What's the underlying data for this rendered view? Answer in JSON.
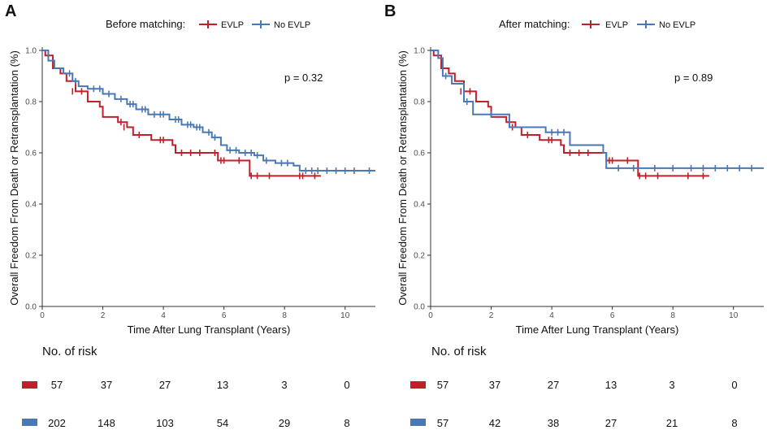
{
  "colors": {
    "evlp": "#c0202a",
    "no_evlp": "#4a78b5",
    "axis": "#333333",
    "tick_text": "#4d4d4d"
  },
  "chart_data": [
    {
      "type": "line",
      "subtype": "kaplan-meier",
      "panel_letter": "A",
      "legend_title": "Before matching:",
      "legend_placement": "top",
      "xlabel": "Time After Lung Transplant (Years)",
      "ylabel": "Overall Freedom From Death or Retransplantation (%)",
      "xlim": [
        0,
        11
      ],
      "ylim": [
        0,
        1
      ],
      "xticks": [
        0,
        2,
        4,
        6,
        8,
        10
      ],
      "yticks": [
        0.0,
        0.2,
        0.4,
        0.6,
        0.8,
        1.0
      ],
      "xtick_labels": [
        "0",
        "2",
        "4",
        "6",
        "8",
        "10"
      ],
      "ytick_labels": [
        "0.0",
        "0.2",
        "0.4",
        "0.6",
        "0.8",
        "1.0"
      ],
      "p_value_label": "p = 0.32",
      "series": [
        {
          "name": "EVLP",
          "color_key": "evlp",
          "steps": [
            [
              0,
              1.0
            ],
            [
              0.1,
              0.98
            ],
            [
              0.35,
              0.93
            ],
            [
              0.6,
              0.91
            ],
            [
              0.8,
              0.88
            ],
            [
              1.1,
              0.84
            ],
            [
              1.5,
              0.8
            ],
            [
              1.9,
              0.78
            ],
            [
              2.0,
              0.74
            ],
            [
              2.5,
              0.72
            ],
            [
              2.8,
              0.7
            ],
            [
              3.0,
              0.67
            ],
            [
              3.4,
              0.67
            ],
            [
              3.6,
              0.65
            ],
            [
              4.1,
              0.65
            ],
            [
              4.3,
              0.63
            ],
            [
              4.4,
              0.6
            ],
            [
              5.5,
              0.6
            ],
            [
              5.8,
              0.57
            ],
            [
              6.8,
              0.57
            ],
            [
              6.85,
              0.51
            ],
            [
              9.2,
              0.51
            ]
          ],
          "censored": [
            [
              1.0,
              0.84
            ],
            [
              1.3,
              0.84
            ],
            [
              2.6,
              0.72
            ],
            [
              2.7,
              0.7
            ],
            [
              3.2,
              0.67
            ],
            [
              3.9,
              0.65
            ],
            [
              4.0,
              0.65
            ],
            [
              4.6,
              0.6
            ],
            [
              4.9,
              0.6
            ],
            [
              5.2,
              0.6
            ],
            [
              5.7,
              0.6
            ],
            [
              5.9,
              0.57
            ],
            [
              6.0,
              0.57
            ],
            [
              6.5,
              0.57
            ],
            [
              6.9,
              0.51
            ],
            [
              7.1,
              0.51
            ],
            [
              7.5,
              0.51
            ],
            [
              8.5,
              0.51
            ],
            [
              8.6,
              0.51
            ],
            [
              9.0,
              0.51
            ]
          ]
        },
        {
          "name": "No EVLP",
          "color_key": "no_evlp",
          "steps": [
            [
              0,
              1.0
            ],
            [
              0.2,
              0.96
            ],
            [
              0.4,
              0.93
            ],
            [
              0.7,
              0.91
            ],
            [
              1.0,
              0.88
            ],
            [
              1.2,
              0.86
            ],
            [
              1.5,
              0.85
            ],
            [
              2.0,
              0.83
            ],
            [
              2.4,
              0.81
            ],
            [
              2.8,
              0.79
            ],
            [
              3.1,
              0.77
            ],
            [
              3.5,
              0.75
            ],
            [
              4.2,
              0.73
            ],
            [
              4.6,
              0.71
            ],
            [
              5.0,
              0.7
            ],
            [
              5.3,
              0.68
            ],
            [
              5.6,
              0.66
            ],
            [
              5.9,
              0.63
            ],
            [
              6.1,
              0.61
            ],
            [
              6.5,
              0.6
            ],
            [
              7.0,
              0.59
            ],
            [
              7.3,
              0.57
            ],
            [
              7.7,
              0.56
            ],
            [
              8.3,
              0.55
            ],
            [
              8.5,
              0.53
            ],
            [
              11,
              0.53
            ]
          ],
          "censored": [
            [
              0.9,
              0.91
            ],
            [
              1.1,
              0.88
            ],
            [
              1.7,
              0.85
            ],
            [
              1.9,
              0.85
            ],
            [
              2.2,
              0.83
            ],
            [
              2.6,
              0.81
            ],
            [
              2.9,
              0.79
            ],
            [
              3.0,
              0.79
            ],
            [
              3.3,
              0.77
            ],
            [
              3.4,
              0.77
            ],
            [
              3.7,
              0.75
            ],
            [
              3.9,
              0.75
            ],
            [
              4.0,
              0.75
            ],
            [
              4.4,
              0.73
            ],
            [
              4.5,
              0.73
            ],
            [
              4.8,
              0.71
            ],
            [
              4.9,
              0.71
            ],
            [
              5.1,
              0.7
            ],
            [
              5.2,
              0.7
            ],
            [
              5.5,
              0.68
            ],
            [
              5.7,
              0.66
            ],
            [
              6.2,
              0.61
            ],
            [
              6.4,
              0.61
            ],
            [
              6.7,
              0.6
            ],
            [
              6.9,
              0.6
            ],
            [
              7.1,
              0.59
            ],
            [
              7.4,
              0.57
            ],
            [
              7.9,
              0.56
            ],
            [
              8.1,
              0.56
            ],
            [
              8.7,
              0.53
            ],
            [
              8.9,
              0.53
            ],
            [
              9.1,
              0.53
            ],
            [
              9.4,
              0.53
            ],
            [
              9.7,
              0.53
            ],
            [
              10.0,
              0.53
            ],
            [
              10.3,
              0.53
            ],
            [
              10.8,
              0.53
            ]
          ]
        }
      ]
    },
    {
      "type": "line",
      "subtype": "kaplan-meier",
      "panel_letter": "B",
      "legend_title": "After matching:",
      "legend_placement": "top",
      "xlabel": "Time After Lung Transplant (Years)",
      "ylabel": "Overall Freedom From Death or Retransplantation (%)",
      "xlim": [
        0,
        11
      ],
      "ylim": [
        0,
        1
      ],
      "xticks": [
        0,
        2,
        4,
        6,
        8,
        10
      ],
      "yticks": [
        0.0,
        0.2,
        0.4,
        0.6,
        0.8,
        1.0
      ],
      "xtick_labels": [
        "0",
        "2",
        "4",
        "6",
        "8",
        "10"
      ],
      "ytick_labels": [
        "0.0",
        "0.2",
        "0.4",
        "0.6",
        "0.8",
        "1.0"
      ],
      "p_value_label": "p = 0.89",
      "series": [
        {
          "name": "EVLP",
          "color_key": "evlp",
          "steps": [
            [
              0,
              1.0
            ],
            [
              0.1,
              0.98
            ],
            [
              0.35,
              0.93
            ],
            [
              0.6,
              0.91
            ],
            [
              0.8,
              0.88
            ],
            [
              1.1,
              0.84
            ],
            [
              1.5,
              0.8
            ],
            [
              1.9,
              0.78
            ],
            [
              2.0,
              0.74
            ],
            [
              2.5,
              0.72
            ],
            [
              2.8,
              0.7
            ],
            [
              3.0,
              0.67
            ],
            [
              3.4,
              0.67
            ],
            [
              3.6,
              0.65
            ],
            [
              4.1,
              0.65
            ],
            [
              4.3,
              0.63
            ],
            [
              4.4,
              0.6
            ],
            [
              5.5,
              0.6
            ],
            [
              5.8,
              0.57
            ],
            [
              6.8,
              0.57
            ],
            [
              6.85,
              0.51
            ],
            [
              9.2,
              0.51
            ]
          ],
          "censored": [
            [
              1.0,
              0.84
            ],
            [
              1.3,
              0.84
            ],
            [
              2.6,
              0.72
            ],
            [
              2.7,
              0.7
            ],
            [
              3.2,
              0.67
            ],
            [
              3.9,
              0.65
            ],
            [
              4.0,
              0.65
            ],
            [
              4.6,
              0.6
            ],
            [
              4.9,
              0.6
            ],
            [
              5.2,
              0.6
            ],
            [
              5.9,
              0.57
            ],
            [
              6.0,
              0.57
            ],
            [
              6.5,
              0.57
            ],
            [
              6.9,
              0.51
            ],
            [
              7.1,
              0.51
            ],
            [
              7.5,
              0.51
            ],
            [
              8.5,
              0.51
            ],
            [
              9.0,
              0.51
            ]
          ]
        },
        {
          "name": "No EVLP",
          "color_key": "no_evlp",
          "steps": [
            [
              0,
              1.0
            ],
            [
              0.25,
              0.97
            ],
            [
              0.4,
              0.9
            ],
            [
              0.7,
              0.87
            ],
            [
              1.1,
              0.8
            ],
            [
              1.4,
              0.75
            ],
            [
              2.6,
              0.7
            ],
            [
              3.8,
              0.68
            ],
            [
              4.6,
              0.63
            ],
            [
              5.7,
              0.6
            ],
            [
              5.8,
              0.54
            ],
            [
              11,
              0.54
            ]
          ],
          "censored": [
            [
              0.5,
              0.9
            ],
            [
              1.2,
              0.8
            ],
            [
              2.0,
              0.75
            ],
            [
              4.0,
              0.68
            ],
            [
              4.2,
              0.68
            ],
            [
              4.4,
              0.68
            ],
            [
              6.2,
              0.54
            ],
            [
              6.7,
              0.54
            ],
            [
              7.4,
              0.54
            ],
            [
              8.0,
              0.54
            ],
            [
              8.6,
              0.54
            ],
            [
              9.0,
              0.54
            ],
            [
              9.4,
              0.54
            ],
            [
              9.8,
              0.54
            ],
            [
              10.2,
              0.54
            ],
            [
              10.6,
              0.54
            ]
          ]
        }
      ]
    }
  ],
  "risk_tables": [
    {
      "title": "No. of risk",
      "rows": [
        {
          "color_key": "evlp",
          "values": [
            "57",
            "37",
            "27",
            "13",
            "3",
            "0"
          ]
        },
        {
          "color_key": "no_evlp",
          "values": [
            "202",
            "148",
            "103",
            "54",
            "29",
            "8"
          ]
        }
      ]
    },
    {
      "title": "No. of risk",
      "rows": [
        {
          "color_key": "evlp",
          "values": [
            "57",
            "37",
            "27",
            "13",
            "3",
            "0"
          ]
        },
        {
          "color_key": "no_evlp",
          "values": [
            "57",
            "42",
            "38",
            "27",
            "21",
            "8"
          ]
        }
      ]
    }
  ]
}
